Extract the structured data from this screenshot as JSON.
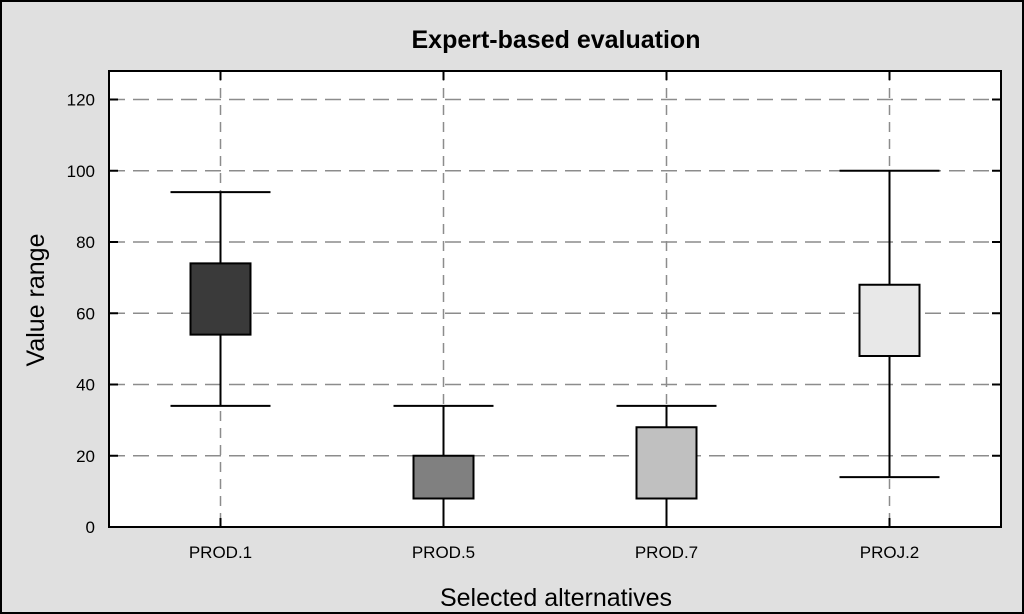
{
  "chart_data": {
    "type": "boxplot",
    "title": "Expert-based evaluation",
    "xlabel": "Selected alternatives",
    "ylabel": "Value range",
    "ylim": [
      0,
      128
    ],
    "y_ticks": [
      "0",
      "20",
      "40",
      "60",
      "80",
      "100",
      "120"
    ],
    "grid": true,
    "categories": [
      "PROD.1",
      "PROD.5",
      "PROD.7",
      "PROJ.2"
    ],
    "boxes": [
      {
        "category": "PROD.1",
        "whisker_low": 34,
        "q1": 54,
        "q3": 74,
        "whisker_high": 94,
        "color": "#3a3a3a"
      },
      {
        "category": "PROD.5",
        "whisker_low": 0,
        "q1": 8,
        "q3": 20,
        "whisker_high": 34,
        "color": "#808080"
      },
      {
        "category": "PROD.7",
        "whisker_low": 0,
        "q1": 8,
        "q3": 28,
        "whisker_high": 34,
        "color": "#c0c0c0"
      },
      {
        "category": "PROJ.2",
        "whisker_low": 14,
        "q1": 48,
        "q3": 68,
        "whisker_high": 100,
        "color": "#e8e8e8"
      }
    ],
    "colors": {
      "figure_background": "#e0e0e0",
      "plot_background": "#ffffff",
      "grid": "#8c8c8c"
    }
  }
}
